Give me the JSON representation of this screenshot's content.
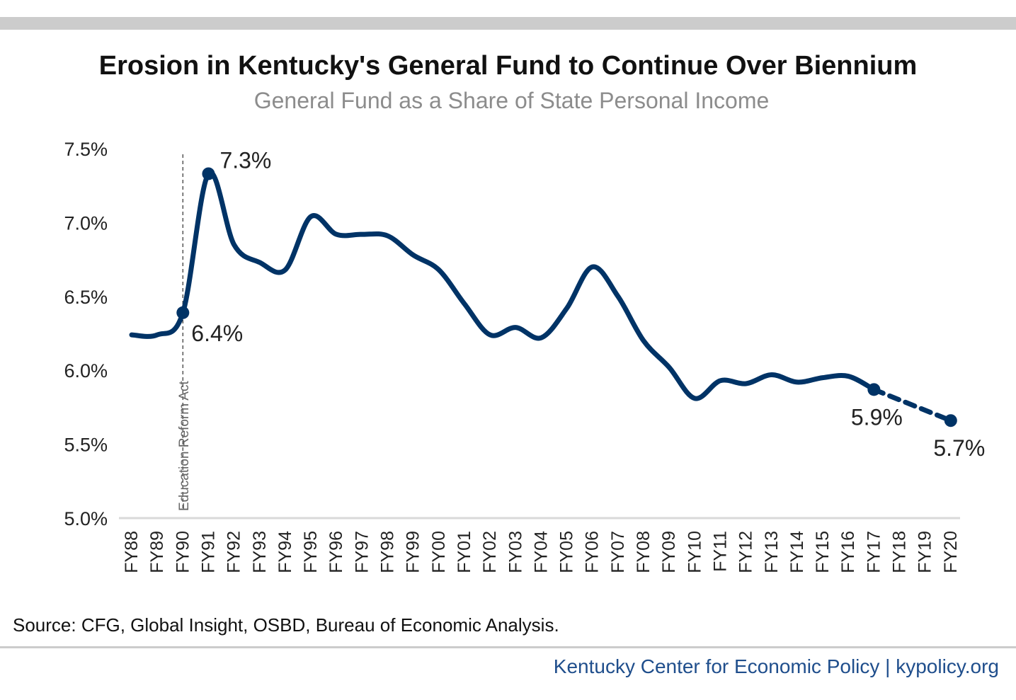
{
  "header": {
    "title": "Erosion in Kentucky's General Fund to Continue Over Biennium",
    "subtitle": "General Fund as a Share of State Personal Income"
  },
  "footer": {
    "source": "Source: CFG, Global Insight, OSBD, Bureau of Economic Analysis.",
    "credit": "Kentucky Center for Economic Policy | kypolicy.org"
  },
  "colors": {
    "line": "#003366",
    "axis": "#d9d9d9",
    "tick_text": "#222222",
    "annotation_text": "#666666"
  },
  "chart_data": {
    "type": "line",
    "title": "Erosion in Kentucky's General Fund to Continue Over Biennium",
    "subtitle": "General Fund as a Share of State Personal Income",
    "xlabel": "",
    "ylabel": "",
    "ylim": [
      5.0,
      7.5
    ],
    "y_ticks": [
      5.0,
      5.5,
      6.0,
      6.5,
      7.0,
      7.5
    ],
    "y_tick_labels": [
      "5.0%",
      "5.5%",
      "6.0%",
      "6.5%",
      "7.0%",
      "7.5%"
    ],
    "grid": false,
    "legend": "none",
    "categories": [
      "FY88",
      "FY89",
      "FY90",
      "FY91",
      "FY92",
      "FY93",
      "FY94",
      "FY95",
      "FY96",
      "FY97",
      "FY98",
      "FY99",
      "FY00",
      "FY01",
      "FY02",
      "FY03",
      "FY04",
      "FY05",
      "FY06",
      "FY07",
      "FY08",
      "FY09",
      "FY10",
      "FY11",
      "FY12",
      "FY13",
      "FY14",
      "FY15",
      "FY16",
      "FY17",
      "FY18",
      "FY19",
      "FY20"
    ],
    "series": [
      {
        "style": "solid",
        "values": [
          6.24,
          6.24,
          6.39,
          7.33,
          6.85,
          6.73,
          6.68,
          7.04,
          6.92,
          6.92,
          6.91,
          6.78,
          6.68,
          6.45,
          6.24,
          6.29,
          6.22,
          6.42,
          6.7,
          6.5,
          6.2,
          6.02,
          5.81,
          5.93,
          5.91,
          5.97,
          5.92,
          5.95,
          5.96,
          5.87,
          null,
          null,
          null
        ]
      },
      {
        "style": "dashed",
        "values": [
          null,
          null,
          null,
          null,
          null,
          null,
          null,
          null,
          null,
          null,
          null,
          null,
          null,
          null,
          null,
          null,
          null,
          null,
          null,
          null,
          null,
          null,
          null,
          null,
          null,
          null,
          null,
          null,
          null,
          5.87,
          null,
          null,
          5.66
        ]
      }
    ],
    "point_labels": [
      {
        "category": "FY90",
        "value": 6.39,
        "text": "6.4%"
      },
      {
        "category": "FY91",
        "value": 7.33,
        "text": "7.3%"
      },
      {
        "category": "FY17",
        "value": 5.87,
        "text": "5.9%"
      },
      {
        "category": "FY20",
        "value": 5.66,
        "text": "5.7%"
      }
    ],
    "annotations": [
      {
        "category": "FY90",
        "type": "vertical-dashed-line",
        "text": "Education Reform Act"
      }
    ]
  }
}
